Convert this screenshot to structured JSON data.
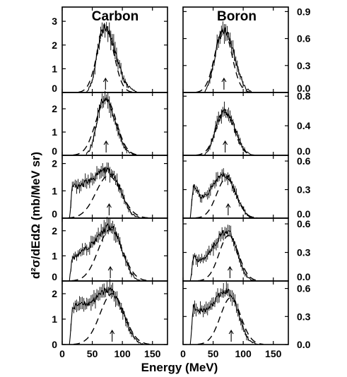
{
  "figure": {
    "titles": [
      "Carbon",
      "Boron"
    ],
    "xlabel": "Energy (MeV)",
    "ylabel": "d²σ/dEdΩ (mb/MeV sr)"
  },
  "chart_data": [
    {
      "type": "line",
      "title": "Carbon",
      "xlim": [
        0,
        175
      ],
      "ylim": [
        0,
        3.6
      ],
      "xticks": [
        0,
        50,
        100,
        150
      ],
      "yticks": [
        "0",
        "1",
        "2",
        "3"
      ],
      "arrow_x": 72,
      "series": [
        {
          "x": [
            40,
            45,
            50,
            55,
            60,
            65,
            70,
            75,
            80,
            85,
            90,
            95,
            100,
            105,
            110,
            115,
            120,
            125
          ],
          "y": [
            0.0,
            0.2,
            0.5,
            1.2,
            2.0,
            2.6,
            2.8,
            2.7,
            2.4,
            2.0,
            1.5,
            1.1,
            0.7,
            0.4,
            0.25,
            0.15,
            0.05,
            0.0
          ]
        }
      ],
      "fit": {
        "center": 72,
        "width": 14,
        "peak": 2.7
      }
    },
    {
      "type": "line",
      "title": "Carbon",
      "xlim": [
        0,
        175
      ],
      "ylim": [
        0,
        2.7
      ],
      "xticks": [
        0,
        50,
        100,
        150
      ],
      "yticks": [
        "0",
        "1",
        "2"
      ],
      "arrow_x": 73,
      "series": [
        {
          "x": [
            40,
            45,
            50,
            55,
            60,
            65,
            70,
            75,
            80,
            85,
            90,
            95,
            100,
            105,
            110,
            115,
            120,
            125
          ],
          "y": [
            0.05,
            0.2,
            0.5,
            1.1,
            1.8,
            2.3,
            2.5,
            2.35,
            2.1,
            1.7,
            1.3,
            0.9,
            0.55,
            0.3,
            0.15,
            0.08,
            0.03,
            0.0
          ]
        }
      ],
      "fit": {
        "center": 73,
        "width": 17,
        "peak": 2.4
      }
    },
    {
      "type": "line",
      "title": "Carbon",
      "xlim": [
        0,
        175
      ],
      "ylim": [
        0,
        2.3
      ],
      "xticks": [
        0,
        50,
        100,
        150
      ],
      "yticks": [
        "0",
        "1",
        "2"
      ],
      "arrow_x": 78,
      "series": [
        {
          "x": [
            12,
            14,
            16,
            18,
            20,
            25,
            30,
            35,
            40,
            45,
            50,
            55,
            60,
            65,
            70,
            75,
            80,
            85,
            90,
            95,
            100,
            105,
            110,
            115,
            120,
            125,
            130
          ],
          "y": [
            0.0,
            0.4,
            1.0,
            1.25,
            1.2,
            1.15,
            1.2,
            1.25,
            1.35,
            1.35,
            1.45,
            1.5,
            1.6,
            1.7,
            1.75,
            1.75,
            1.7,
            1.6,
            1.4,
            1.15,
            0.85,
            0.6,
            0.35,
            0.2,
            0.1,
            0.05,
            0.0
          ]
        }
      ],
      "fit": {
        "center": 77,
        "width": 21,
        "peak": 1.55
      }
    },
    {
      "type": "line",
      "title": "Carbon",
      "xlim": [
        0,
        175
      ],
      "ylim": [
        0,
        2.5
      ],
      "xticks": [
        0,
        50,
        100,
        150
      ],
      "yticks": [
        "0",
        "1",
        "2"
      ],
      "arrow_x": 80,
      "series": [
        {
          "x": [
            12,
            14,
            16,
            18,
            20,
            25,
            30,
            35,
            40,
            45,
            50,
            55,
            60,
            65,
            70,
            75,
            80,
            85,
            90,
            95,
            100,
            105,
            110,
            115,
            120,
            125,
            130
          ],
          "y": [
            0.0,
            0.4,
            0.85,
            0.95,
            0.95,
            1.05,
            1.15,
            1.2,
            1.3,
            1.4,
            1.5,
            1.6,
            1.75,
            1.9,
            2.05,
            2.15,
            2.15,
            2.05,
            1.85,
            1.55,
            1.2,
            0.85,
            0.55,
            0.3,
            0.15,
            0.05,
            0.0
          ]
        }
      ],
      "fit": {
        "center": 80,
        "width": 20,
        "peak": 2.05
      }
    },
    {
      "type": "line",
      "title": "Carbon",
      "xlim": [
        0,
        175
      ],
      "ylim": [
        0,
        2.5
      ],
      "xticks": [
        0,
        50,
        100,
        150
      ],
      "yticks": [
        "0",
        "1",
        "2"
      ],
      "arrow_x": 83,
      "series": [
        {
          "x": [
            12,
            14,
            16,
            18,
            20,
            25,
            30,
            35,
            40,
            45,
            50,
            55,
            60,
            65,
            70,
            75,
            80,
            85,
            90,
            95,
            100,
            105,
            110,
            115,
            120,
            125,
            130,
            135
          ],
          "y": [
            0.0,
            0.5,
            1.2,
            1.45,
            1.45,
            1.55,
            1.65,
            1.65,
            1.6,
            1.6,
            1.75,
            1.8,
            1.9,
            2.0,
            2.1,
            2.15,
            2.15,
            2.05,
            1.85,
            1.6,
            1.3,
            1.0,
            0.7,
            0.45,
            0.25,
            0.12,
            0.05,
            0.0
          ]
        }
      ],
      "fit": {
        "center": 83,
        "width": 20,
        "peak": 2.0
      }
    },
    {
      "type": "line",
      "title": "Boron",
      "xlim": [
        0,
        175
      ],
      "ylim": [
        0,
        0.95
      ],
      "xticks": [
        0,
        50,
        100,
        150
      ],
      "yticks": [
        "0.0",
        "0.3",
        "0.6",
        "0.9"
      ],
      "arrow_x": 68,
      "series": [
        {
          "x": [
            35,
            40,
            45,
            50,
            55,
            60,
            65,
            70,
            75,
            80,
            85,
            90,
            95,
            100,
            105,
            110,
            115
          ],
          "y": [
            0.0,
            0.05,
            0.15,
            0.3,
            0.48,
            0.6,
            0.68,
            0.7,
            0.65,
            0.55,
            0.42,
            0.3,
            0.18,
            0.1,
            0.04,
            0.02,
            0.0
          ]
        }
      ],
      "fit": {
        "center": 67,
        "width": 14,
        "peak": 0.7
      }
    },
    {
      "type": "line",
      "title": "Boron",
      "xlim": [
        0,
        175
      ],
      "ylim": [
        0,
        0.85
      ],
      "xticks": [
        0,
        50,
        100,
        150
      ],
      "yticks": [
        "0.0",
        "0.4",
        "0.8"
      ],
      "arrow_x": 70,
      "series": [
        {
          "x": [
            35,
            40,
            45,
            50,
            55,
            60,
            65,
            70,
            75,
            80,
            85,
            90,
            95,
            100,
            105,
            110,
            115
          ],
          "y": [
            0.0,
            0.05,
            0.12,
            0.25,
            0.4,
            0.52,
            0.58,
            0.6,
            0.57,
            0.5,
            0.4,
            0.28,
            0.18,
            0.1,
            0.05,
            0.02,
            0.0
          ]
        }
      ],
      "fit": {
        "center": 70,
        "width": 15,
        "peak": 0.58
      }
    },
    {
      "type": "line",
      "title": "Boron",
      "xlim": [
        0,
        175
      ],
      "ylim": [
        0,
        0.66
      ],
      "xticks": [
        0,
        50,
        100,
        150
      ],
      "yticks": [
        "0.0",
        "0.3",
        "0.6"
      ],
      "arrow_x": 75,
      "series": [
        {
          "x": [
            12,
            14,
            16,
            18,
            20,
            25,
            30,
            35,
            40,
            45,
            50,
            55,
            60,
            65,
            70,
            75,
            80,
            85,
            90,
            95,
            100,
            105,
            110,
            115,
            120
          ],
          "y": [
            0.0,
            0.12,
            0.3,
            0.33,
            0.3,
            0.26,
            0.22,
            0.22,
            0.25,
            0.3,
            0.35,
            0.38,
            0.42,
            0.45,
            0.45,
            0.43,
            0.38,
            0.3,
            0.22,
            0.15,
            0.1,
            0.05,
            0.02,
            0.01,
            0.0
          ]
        }
      ],
      "fit": {
        "center": 72,
        "width": 16,
        "peak": 0.42
      }
    },
    {
      "type": "line",
      "title": "Boron",
      "xlim": [
        0,
        175
      ],
      "ylim": [
        0,
        0.66
      ],
      "xticks": [
        0,
        50,
        100,
        150
      ],
      "yticks": [
        "0.0",
        "0.3",
        "0.6"
      ],
      "arrow_x": 78,
      "series": [
        {
          "x": [
            12,
            14,
            16,
            18,
            20,
            25,
            30,
            35,
            40,
            45,
            50,
            55,
            60,
            65,
            70,
            75,
            80,
            85,
            90,
            95,
            100,
            105,
            110,
            115,
            120
          ],
          "y": [
            0.0,
            0.08,
            0.22,
            0.26,
            0.24,
            0.22,
            0.22,
            0.24,
            0.28,
            0.32,
            0.36,
            0.4,
            0.46,
            0.5,
            0.52,
            0.52,
            0.48,
            0.4,
            0.3,
            0.2,
            0.12,
            0.06,
            0.03,
            0.01,
            0.0
          ]
        }
      ],
      "fit": {
        "center": 76,
        "width": 16,
        "peak": 0.48
      }
    },
    {
      "type": "line",
      "title": "Boron",
      "xlim": [
        0,
        175
      ],
      "ylim": [
        0,
        0.68
      ],
      "xticks": [
        0,
        50,
        100,
        150
      ],
      "yticks": [
        "0.0",
        "0.3",
        "0.6"
      ],
      "arrow_x": 80,
      "series": [
        {
          "x": [
            12,
            14,
            16,
            18,
            20,
            25,
            30,
            35,
            40,
            45,
            50,
            55,
            60,
            65,
            70,
            75,
            80,
            85,
            90,
            95,
            100,
            105,
            110,
            115,
            120,
            125
          ],
          "y": [
            0.0,
            0.15,
            0.36,
            0.42,
            0.4,
            0.38,
            0.36,
            0.36,
            0.38,
            0.4,
            0.44,
            0.48,
            0.52,
            0.55,
            0.57,
            0.57,
            0.54,
            0.47,
            0.38,
            0.28,
            0.18,
            0.1,
            0.05,
            0.02,
            0.01,
            0.0
          ]
        }
      ],
      "fit": {
        "center": 79,
        "width": 17,
        "peak": 0.5
      }
    }
  ]
}
